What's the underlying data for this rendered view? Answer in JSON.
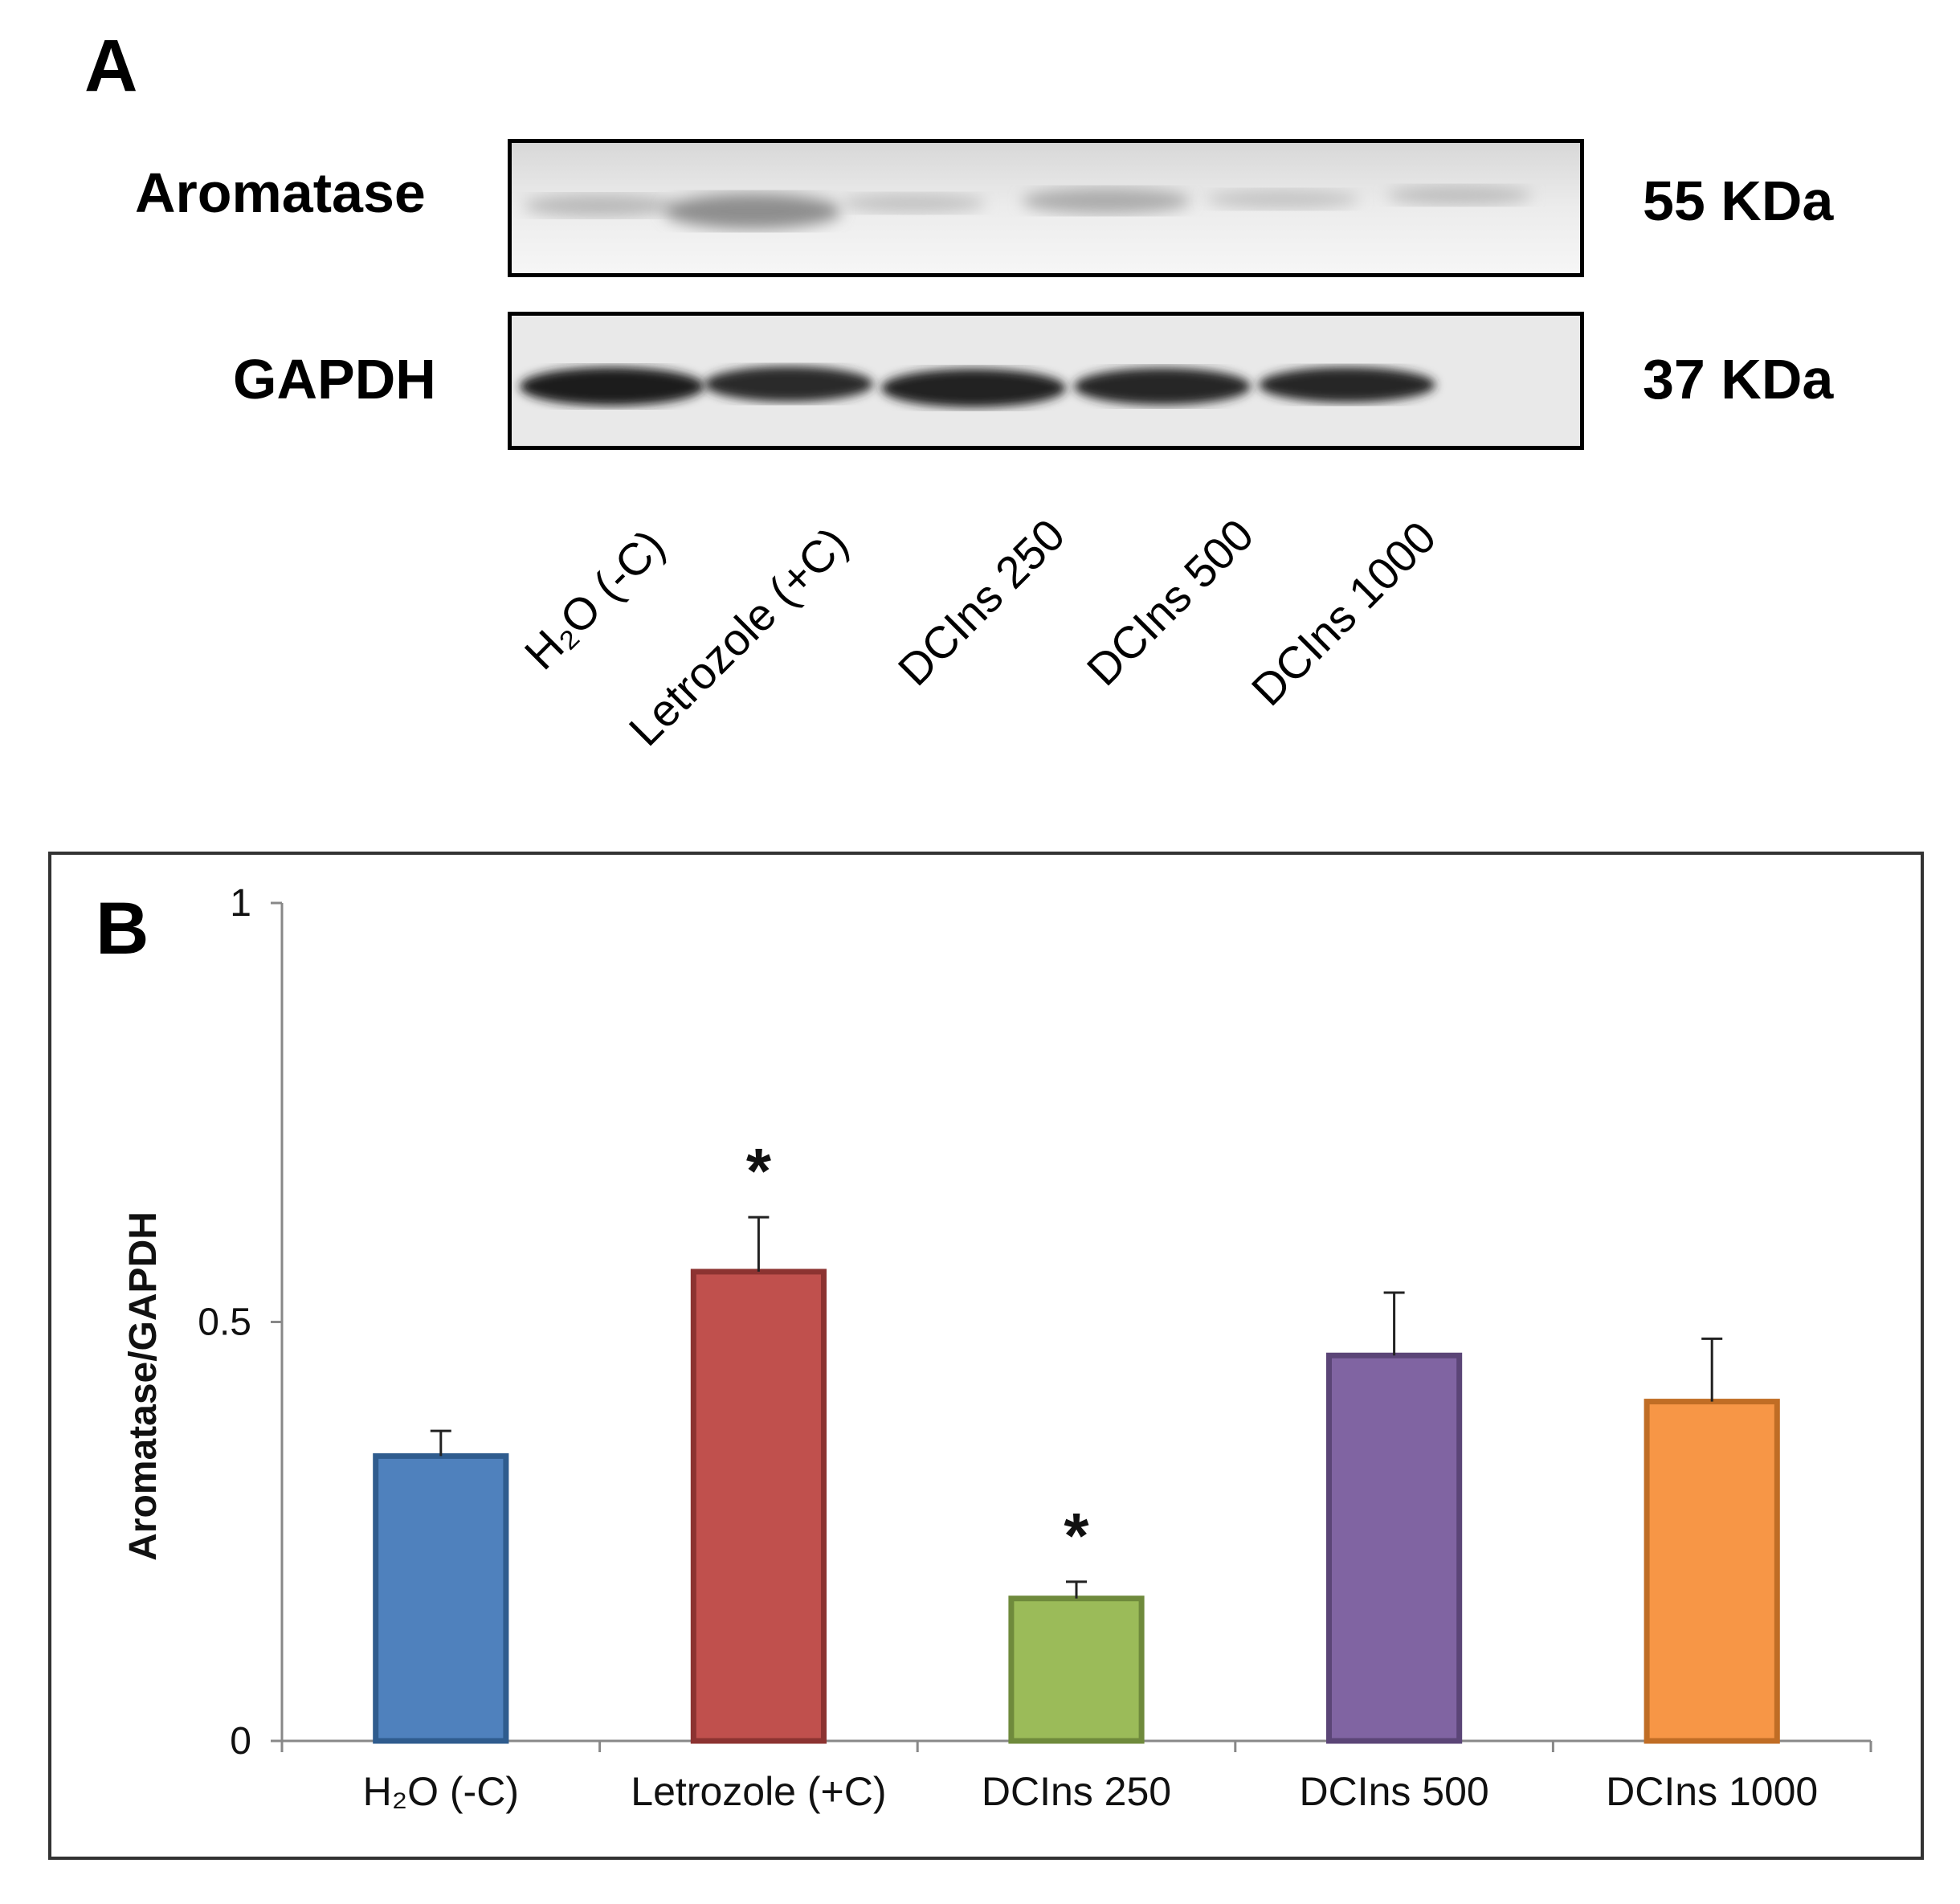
{
  "panel_a": {
    "letter": "A",
    "blots": [
      {
        "protein": "Aromatase",
        "size": "55 KDa"
      },
      {
        "protein": "GAPDH",
        "size": "37 KDa"
      }
    ],
    "lanes": [
      "H₂O (-C)",
      "Letrozole (+C)",
      "DCIns 250",
      "DCIns 500",
      "DCIns 1000"
    ]
  },
  "chart_data": {
    "type": "bar",
    "panel_letter": "B",
    "categories": [
      "H₂O (-C)",
      "Letrozole (+C)",
      "DCIns 250",
      "DCIns 500",
      "DCIns 1000"
    ],
    "values": [
      0.34,
      0.56,
      0.17,
      0.46,
      0.405
    ],
    "errors": [
      0.03,
      0.065,
      0.02,
      0.075,
      0.075
    ],
    "significance": [
      "",
      "*",
      "*",
      "",
      ""
    ],
    "colors": [
      "#4f81bd",
      "#c0504d",
      "#9bbb59",
      "#8064a2",
      "#f79646"
    ],
    "border_colors": [
      "#2f5c8e",
      "#8c3331",
      "#6f8a3c",
      "#5b4577",
      "#c06d25"
    ],
    "xlabel": "",
    "ylabel": "Aromatase/GAPDH",
    "ylim": [
      0,
      1
    ],
    "yticks": [
      "0",
      "0.5",
      "1"
    ],
    "grid": false,
    "legend": "none"
  }
}
